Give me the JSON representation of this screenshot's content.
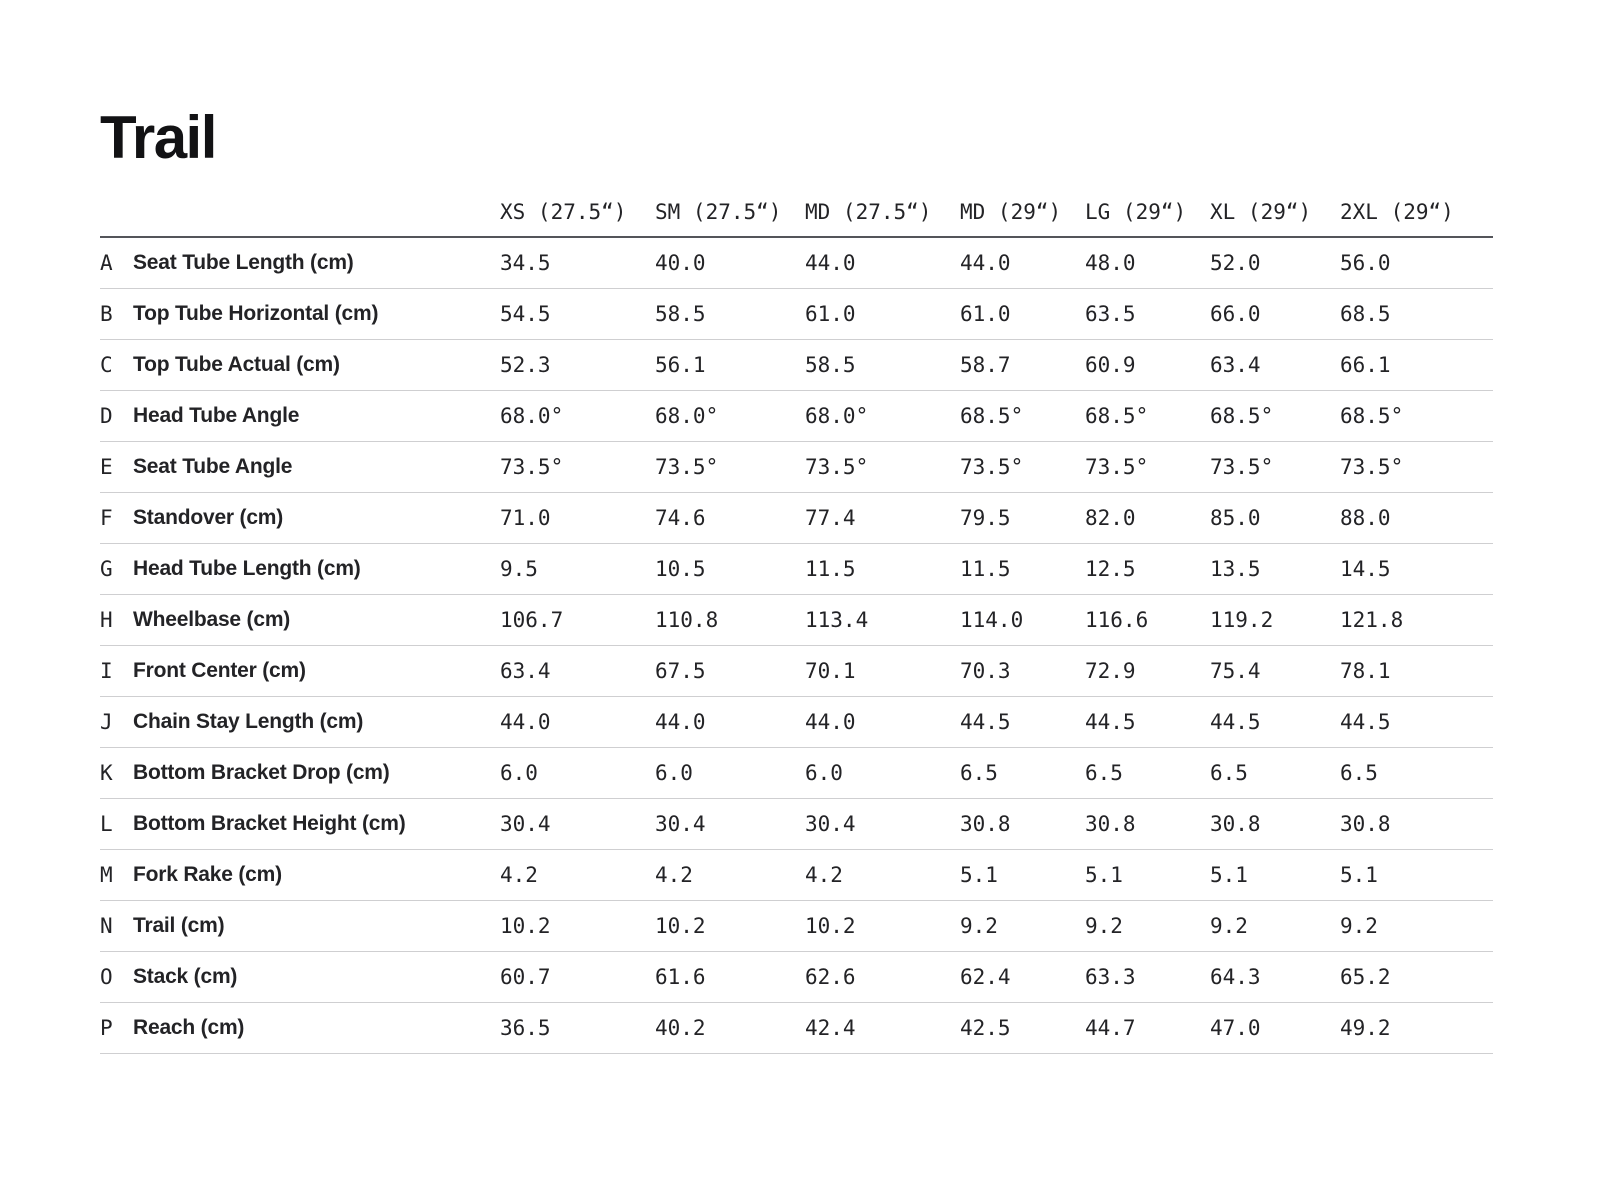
{
  "title": "Trail",
  "table": {
    "columns": [
      "XS (27.5“)",
      "SM (27.5“)",
      "MD (27.5“)",
      "MD (29“)",
      "LG (29“)",
      "XL (29“)",
      "2XL (29“)"
    ],
    "rows": [
      {
        "letter": "A",
        "label": "Seat Tube Length (cm)",
        "values": [
          "34.5",
          "40.0",
          "44.0",
          "44.0",
          "48.0",
          "52.0",
          "56.0"
        ]
      },
      {
        "letter": "B",
        "label": "Top Tube Horizontal (cm)",
        "values": [
          "54.5",
          "58.5",
          "61.0",
          "61.0",
          "63.5",
          "66.0",
          "68.5"
        ]
      },
      {
        "letter": "C",
        "label": "Top Tube Actual (cm)",
        "values": [
          "52.3",
          "56.1",
          "58.5",
          "58.7",
          "60.9",
          "63.4",
          "66.1"
        ]
      },
      {
        "letter": "D",
        "label": "Head Tube Angle",
        "values": [
          "68.0°",
          "68.0°",
          "68.0°",
          "68.5°",
          "68.5°",
          "68.5°",
          "68.5°"
        ]
      },
      {
        "letter": "E",
        "label": "Seat Tube Angle",
        "values": [
          "73.5°",
          "73.5°",
          "73.5°",
          "73.5°",
          "73.5°",
          "73.5°",
          "73.5°"
        ]
      },
      {
        "letter": "F",
        "label": "Standover (cm)",
        "values": [
          "71.0",
          "74.6",
          "77.4",
          "79.5",
          "82.0",
          "85.0",
          "88.0"
        ]
      },
      {
        "letter": "G",
        "label": "Head Tube Length (cm)",
        "values": [
          "9.5",
          "10.5",
          "11.5",
          "11.5",
          "12.5",
          "13.5",
          "14.5"
        ]
      },
      {
        "letter": "H",
        "label": "Wheelbase (cm)",
        "values": [
          "106.7",
          "110.8",
          "113.4",
          "114.0",
          "116.6",
          "119.2",
          "121.8"
        ]
      },
      {
        "letter": "I",
        "label": "Front Center (cm)",
        "values": [
          "63.4",
          "67.5",
          "70.1",
          "70.3",
          "72.9",
          "75.4",
          "78.1"
        ]
      },
      {
        "letter": "J",
        "label": "Chain Stay Length (cm)",
        "values": [
          "44.0",
          "44.0",
          "44.0",
          "44.5",
          "44.5",
          "44.5",
          "44.5"
        ]
      },
      {
        "letter": "K",
        "label": "Bottom Bracket Drop (cm)",
        "values": [
          "6.0",
          "6.0",
          "6.0",
          "6.5",
          "6.5",
          "6.5",
          "6.5"
        ]
      },
      {
        "letter": "L",
        "label": "Bottom Bracket Height (cm)",
        "values": [
          "30.4",
          "30.4",
          "30.4",
          "30.8",
          "30.8",
          "30.8",
          "30.8"
        ]
      },
      {
        "letter": "M",
        "label": "Fork Rake (cm)",
        "values": [
          "4.2",
          "4.2",
          "4.2",
          "5.1",
          "5.1",
          "5.1",
          "5.1"
        ]
      },
      {
        "letter": "N",
        "label": "Trail (cm)",
        "values": [
          "10.2",
          "10.2",
          "10.2",
          "9.2",
          "9.2",
          "9.2",
          "9.2"
        ]
      },
      {
        "letter": "O",
        "label": "Stack (cm)",
        "values": [
          "60.7",
          "61.6",
          "62.6",
          "62.4",
          "63.3",
          "64.3",
          "65.2"
        ]
      },
      {
        "letter": "P",
        "label": "Reach (cm)",
        "values": [
          "36.5",
          "40.2",
          "42.4",
          "42.5",
          "44.7",
          "47.0",
          "49.2"
        ]
      }
    ]
  },
  "colors": {
    "background": "#ffffff",
    "text": "#1b1b1d",
    "header_rule": "#54555a",
    "row_rule": "#cfcfd1"
  }
}
